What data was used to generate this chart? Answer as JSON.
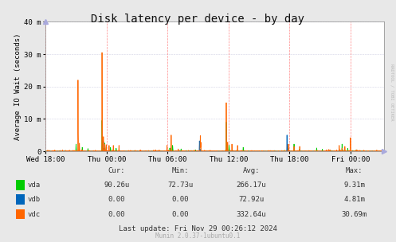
{
  "title": "Disk latency per device - by day",
  "ylabel": "Average IO Wait (seconds)",
  "background_color": "#e8e8e8",
  "plot_bg_color": "#ffffff",
  "x_ticks_labels": [
    "Wed 18:00",
    "Thu 00:00",
    "Thu 06:00",
    "Thu 12:00",
    "Thu 18:00",
    "Fri 00:00"
  ],
  "x_ticks_pos": [
    0,
    216,
    432,
    648,
    864,
    1080
  ],
  "total_points": 1200,
  "ylim": [
    0,
    40
  ],
  "yticks": [
    0,
    10,
    20,
    30,
    40
  ],
  "ytick_labels": [
    "0",
    "10 m",
    "20 m",
    "30 m",
    "40 m"
  ],
  "vline_positions": [
    0,
    216,
    432,
    648,
    864,
    1080
  ],
  "series_order": [
    "vda",
    "vdb",
    "vdc"
  ],
  "series": {
    "vda": {
      "color": "#00cc00",
      "label": "vda",
      "cur": "90.26u",
      "min": "72.73u",
      "avg": "266.17u",
      "max": "9.31m"
    },
    "vdb": {
      "color": "#0066bb",
      "label": "vdb",
      "cur": "0.00",
      "min": "0.00",
      "avg": "72.92u",
      "max": "4.81m"
    },
    "vdc": {
      "color": "#ff6600",
      "label": "vdc",
      "cur": "0.00",
      "min": "0.00",
      "avg": "332.64u",
      "max": "30.69m"
    }
  },
  "last_update": "Last update: Fri Nov 29 00:26:12 2024",
  "munin_version": "Munin 2.0.37-1ubuntu0.1",
  "watermark": "RRDTOOL / TOBI OETIKER",
  "title_fontsize": 10,
  "axis_fontsize": 6.5,
  "footer_fontsize": 6.5,
  "munin_fontsize": 5.5
}
